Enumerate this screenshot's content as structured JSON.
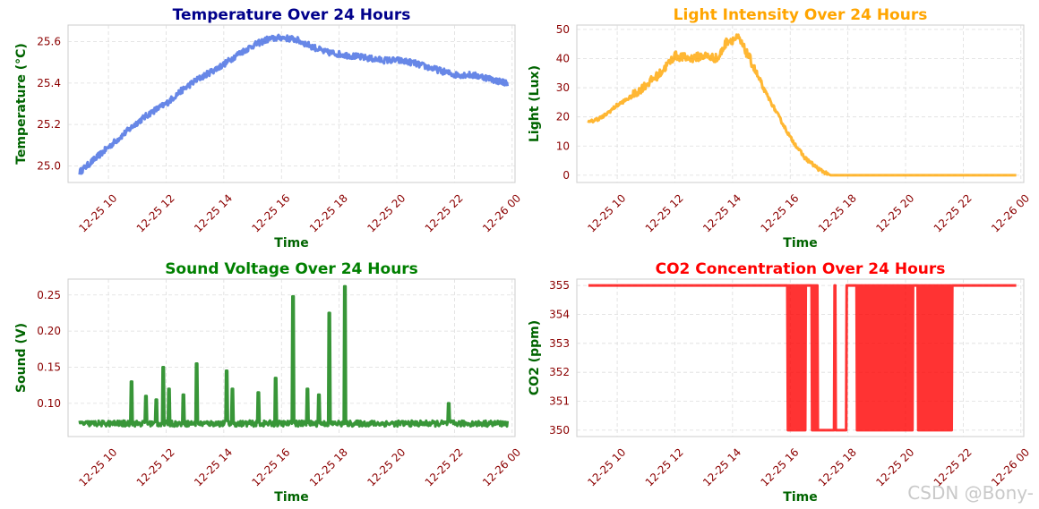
{
  "watermark": "CSDN @Bony-",
  "chart_data": [
    {
      "type": "line",
      "title": "Temperature Over 24 Hours",
      "title_color": "#00008b",
      "xlabel": "Time",
      "ylabel": "Temperature (°C)",
      "line_color": "#4169e1",
      "xticks": [
        "12-25 10",
        "12-25 12",
        "12-25 14",
        "12-25 16",
        "12-25 18",
        "12-25 20",
        "12-25 22",
        "12-26 00"
      ],
      "xlim": [
        8.6,
        24.1
      ],
      "ylim": [
        24.92,
        25.68
      ],
      "yticks": [
        25.0,
        25.2,
        25.4,
        25.6
      ],
      "ytick_labels": [
        "25.0",
        "25.2",
        "25.4",
        "25.6"
      ],
      "series": [
        {
          "name": "Temperature",
          "x": [
            9.0,
            9.5,
            10.0,
            10.5,
            11.0,
            11.5,
            12.0,
            12.5,
            13.0,
            13.5,
            14.0,
            14.5,
            15.0,
            15.5,
            16.0,
            16.5,
            17.0,
            17.5,
            18.0,
            18.5,
            19.0,
            19.5,
            20.0,
            20.5,
            21.0,
            21.5,
            22.0,
            22.5,
            23.0,
            23.5,
            23.85
          ],
          "y": [
            24.97,
            25.03,
            25.09,
            25.15,
            25.21,
            25.26,
            25.3,
            25.36,
            25.41,
            25.45,
            25.49,
            25.54,
            25.58,
            25.61,
            25.62,
            25.61,
            25.58,
            25.55,
            25.54,
            25.53,
            25.52,
            25.51,
            25.51,
            25.5,
            25.48,
            25.46,
            25.44,
            25.44,
            25.43,
            25.41,
            25.4
          ]
        }
      ]
    },
    {
      "type": "line",
      "title": "Light Intensity Over 24 Hours",
      "title_color": "#ffa500",
      "xlabel": "Time",
      "ylabel": "Light (Lux)",
      "line_color": "#ffa500",
      "xticks": [
        "12-25 10",
        "12-25 12",
        "12-25 14",
        "12-25 16",
        "12-25 18",
        "12-25 20",
        "12-25 22",
        "12-26 00"
      ],
      "xlim": [
        8.6,
        24.1
      ],
      "ylim": [
        -2.5,
        51.5
      ],
      "yticks": [
        0,
        10,
        20,
        30,
        40,
        50
      ],
      "ytick_labels": [
        "0",
        "10",
        "20",
        "30",
        "40",
        "50"
      ],
      "series": [
        {
          "name": "Light",
          "x": [
            9.0,
            9.5,
            10.0,
            10.5,
            11.0,
            11.5,
            12.0,
            12.5,
            13.0,
            13.5,
            13.8,
            14.2,
            14.6,
            15.0,
            15.5,
            16.0,
            16.5,
            17.0,
            17.4,
            18.0,
            19.0,
            20.0,
            21.0,
            22.0,
            23.0,
            23.85
          ],
          "y": [
            18,
            20,
            24,
            27,
            31,
            35,
            41,
            40,
            41,
            40,
            46,
            47,
            40,
            31,
            22,
            13,
            6,
            2,
            0,
            0,
            0,
            0,
            0,
            0,
            0,
            0
          ]
        }
      ]
    },
    {
      "type": "line",
      "title": "Sound Voltage Over 24 Hours",
      "title_color": "#008000",
      "xlabel": "Time",
      "ylabel": "Sound (V)",
      "line_color": "#228b22",
      "xticks": [
        "12-25 10",
        "12-25 12",
        "12-25 14",
        "12-25 16",
        "12-25 18",
        "12-25 20",
        "12-25 22",
        "12-26 00"
      ],
      "xlim": [
        8.6,
        24.1
      ],
      "ylim": [
        0.054,
        0.272
      ],
      "yticks": [
        0.1,
        0.15,
        0.2,
        0.25
      ],
      "ytick_labels": [
        "0.10",
        "0.15",
        "0.20",
        "0.25"
      ],
      "baseline": 0.072,
      "x_start": 9.0,
      "x_end": 23.85,
      "spikes": [
        {
          "x": 10.8,
          "y": 0.13
        },
        {
          "x": 11.3,
          "y": 0.11
        },
        {
          "x": 11.65,
          "y": 0.105
        },
        {
          "x": 11.9,
          "y": 0.15
        },
        {
          "x": 12.1,
          "y": 0.12
        },
        {
          "x": 12.6,
          "y": 0.112
        },
        {
          "x": 13.05,
          "y": 0.155
        },
        {
          "x": 14.1,
          "y": 0.145
        },
        {
          "x": 14.3,
          "y": 0.12
        },
        {
          "x": 15.2,
          "y": 0.115
        },
        {
          "x": 15.8,
          "y": 0.135
        },
        {
          "x": 16.4,
          "y": 0.248
        },
        {
          "x": 16.9,
          "y": 0.12
        },
        {
          "x": 17.3,
          "y": 0.112
        },
        {
          "x": 17.65,
          "y": 0.225
        },
        {
          "x": 18.2,
          "y": 0.262
        },
        {
          "x": 21.8,
          "y": 0.1
        }
      ]
    },
    {
      "type": "line",
      "title": "CO2 Concentration Over 24 Hours",
      "title_color": "#ff0000",
      "xlabel": "Time",
      "ylabel": "CO2 (ppm)",
      "line_color": "#ff0000",
      "xticks": [
        "12-25 10",
        "12-25 12",
        "12-25 14",
        "12-25 16",
        "12-25 18",
        "12-25 20",
        "12-25 22",
        "12-26 00"
      ],
      "xlim": [
        8.6,
        24.1
      ],
      "ylim": [
        349.78,
        355.22
      ],
      "yticks": [
        350,
        351,
        352,
        353,
        354,
        355
      ],
      "ytick_labels": [
        "350",
        "351",
        "352",
        "353",
        "354",
        "355"
      ],
      "high": 355,
      "low": 350,
      "x_start": 9.0,
      "x_end": 23.85,
      "oscillation_ranges": [
        [
          15.9,
          16.55
        ],
        [
          16.75,
          16.95
        ],
        [
          18.3,
          20.25
        ],
        [
          20.4,
          21.6
        ]
      ],
      "low_plateau": [
        16.95,
        17.95
      ],
      "single_drops": [
        17.55
      ]
    }
  ]
}
